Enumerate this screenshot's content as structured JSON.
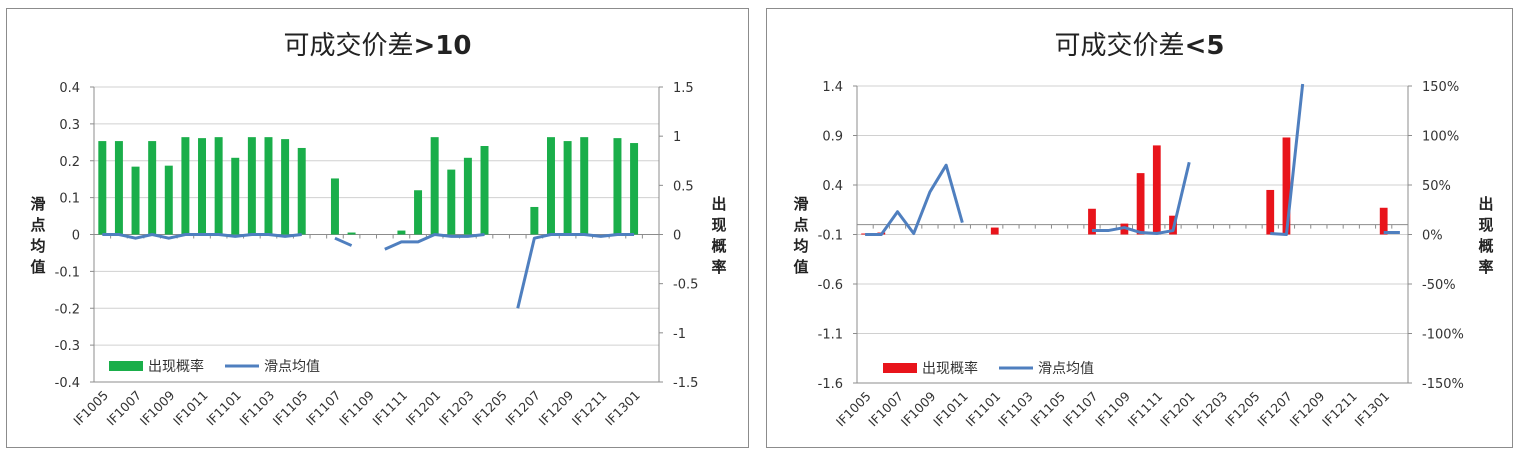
{
  "chart_data": [
    {
      "type": "bar+line",
      "title": "可成交价差",
      "title_suffix": ">10",
      "ylabel_left": "滑点均值",
      "ylabel_right": "出现概率",
      "left_ticks": [
        "0.4",
        "0.3",
        "0.2",
        "0.1",
        "0",
        "-0.1",
        "-0.2",
        "-0.3",
        "-0.4"
      ],
      "right_ticks": [
        "1.5",
        "1",
        "0.5",
        "0",
        "-0.5",
        "-1",
        "-1.5"
      ],
      "left_ylim": [
        -0.4,
        0.4
      ],
      "right_ylim": [
        -1.5,
        1.5
      ],
      "grid": true,
      "legend_position": "bottom-left",
      "bar_color": "#1aae4a",
      "line_color": "#4f7fbf",
      "legend": [
        "出现概率",
        "滑点均值"
      ],
      "categories": [
        "IF1005",
        "IF1006",
        "IF1007",
        "IF1008",
        "IF1009",
        "IF1010",
        "IF1011",
        "IF1012",
        "IF1101",
        "IF1102",
        "IF1103",
        "IF1104",
        "IF1105",
        "IF1106",
        "IF1107",
        "IF1108",
        "IF1109",
        "IF1110",
        "IF1111",
        "IF1112",
        "IF1201",
        "IF1202",
        "IF1203",
        "IF1204",
        "IF1205",
        "IF1206",
        "IF1207",
        "IF1208",
        "IF1209",
        "IF1210",
        "IF1211",
        "IF1212",
        "IF1301",
        "IF1302"
      ],
      "labeled_categories": [
        "IF1005",
        "IF1007",
        "IF1009",
        "IF1011",
        "IF1101",
        "IF1103",
        "IF1105",
        "IF1107",
        "IF1109",
        "IF1111",
        "IF1201",
        "IF1203",
        "IF1205",
        "IF1207",
        "IF1209",
        "IF1211",
        "IF1301"
      ],
      "series": [
        {
          "name": "出现概率",
          "axis": "right",
          "kind": "bar",
          "values": [
            0.95,
            0.95,
            0.69,
            0.95,
            0.7,
            0.99,
            0.98,
            0.99,
            0.78,
            0.99,
            0.99,
            0.97,
            0.88,
            null,
            0.57,
            0.02,
            null,
            null,
            0.04,
            0.45,
            0.99,
            0.66,
            0.78,
            0.9,
            null,
            null,
            0.28,
            0.99,
            0.95,
            0.99,
            null,
            0.98,
            0.93,
            null
          ]
        },
        {
          "name": "滑点均值",
          "axis": "left",
          "kind": "line",
          "values": [
            0,
            0,
            -0.01,
            0,
            -0.01,
            0,
            0,
            0,
            -0.005,
            0,
            0,
            -0.005,
            0,
            null,
            -0.01,
            -0.03,
            null,
            -0.04,
            -0.02,
            -0.02,
            0,
            -0.005,
            -0.005,
            0,
            null,
            -0.2,
            -0.01,
            0,
            0,
            0,
            -0.005,
            0,
            0,
            null
          ]
        }
      ]
    },
    {
      "type": "bar+line",
      "title": "可成交价差",
      "title_suffix": "<5",
      "ylabel_left": "滑点均值",
      "ylabel_right": "出现概率",
      "left_ticks": [
        "1.4",
        "0.9",
        "0.4",
        "-0.1",
        "-0.6",
        "-1.1",
        "-1.6"
      ],
      "right_ticks": [
        "150%",
        "100%",
        "50%",
        "0%",
        "-50%",
        "-100%",
        "-150%"
      ],
      "left_ylim": [
        -1.6,
        1.4
      ],
      "right_ylim": [
        -150,
        150
      ],
      "grid": true,
      "legend_position": "bottom-left",
      "bar_color": "#e8141b",
      "line_color": "#4f7fbf",
      "legend": [
        "出现概率",
        "滑点均值"
      ],
      "categories": [
        "IF1005",
        "IF1006",
        "IF1007",
        "IF1008",
        "IF1009",
        "IF1010",
        "IF1011",
        "IF1012",
        "IF1101",
        "IF1102",
        "IF1103",
        "IF1104",
        "IF1105",
        "IF1106",
        "IF1107",
        "IF1108",
        "IF1109",
        "IF1110",
        "IF1111",
        "IF1112",
        "IF1201",
        "IF1202",
        "IF1203",
        "IF1204",
        "IF1205",
        "IF1206",
        "IF1207",
        "IF1208",
        "IF1209",
        "IF1210",
        "IF1211",
        "IF1212",
        "IF1301",
        "IF1302"
      ],
      "labeled_categories": [
        "IF1005",
        "IF1007",
        "IF1009",
        "IF1011",
        "IF1101",
        "IF1103",
        "IF1105",
        "IF1107",
        "IF1109",
        "IF1111",
        "IF1201",
        "IF1203",
        "IF1205",
        "IF1207",
        "IF1209",
        "IF1211",
        "IF1301"
      ],
      "series": [
        {
          "name": "出现概率",
          "axis": "right",
          "kind": "bar",
          "values": [
            1,
            2,
            null,
            null,
            null,
            null,
            null,
            null,
            7,
            null,
            null,
            null,
            null,
            null,
            26,
            null,
            11,
            62,
            90,
            19,
            null,
            null,
            null,
            null,
            null,
            45,
            98,
            null,
            null,
            null,
            null,
            null,
            27,
            null
          ]
        },
        {
          "name": "滑点均值",
          "axis": "left",
          "kind": "line",
          "values": [
            -0.1,
            -0.1,
            0.13,
            -0.09,
            0.33,
            0.6,
            0.02,
            null,
            null,
            null,
            null,
            null,
            null,
            null,
            -0.06,
            -0.06,
            -0.03,
            -0.08,
            -0.09,
            -0.06,
            0.63,
            null,
            null,
            null,
            null,
            -0.09,
            -0.1,
            1.42,
            null,
            null,
            null,
            null,
            -0.08,
            -0.08
          ]
        }
      ]
    }
  ]
}
